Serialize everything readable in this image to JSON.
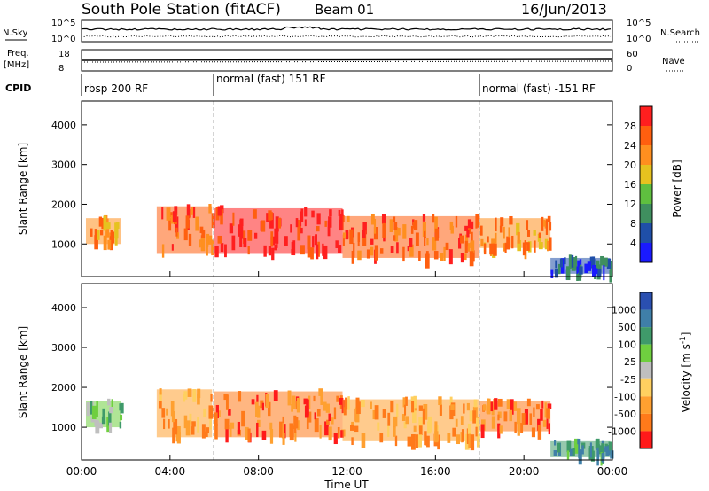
{
  "header": {
    "station": "South Pole Station (fitACF)",
    "beam": "Beam 01",
    "date": "16/Jun/2013"
  },
  "top_panels": {
    "nsky_label": "N.Sky",
    "nsearch_label": "N.Search",
    "nsky_ticks": [
      "10^5",
      "10^0"
    ],
    "nsearch_ticks": [
      "10^5",
      "10^0"
    ],
    "freq_label_1": "Freq.",
    "freq_label_2": "[MHz]",
    "freq_ticks": [
      "18",
      "8"
    ],
    "nave_label": "Nave",
    "nave_ticks": [
      "60",
      "0"
    ],
    "cpid_label": "CPID",
    "cpid_segments": [
      {
        "label": "rbsp 200 RF",
        "start_hour": 0
      },
      {
        "label": "normal (fast) 151 RF",
        "start_hour": 6
      },
      {
        "label": "normal (fast) -151 RF",
        "start_hour": 18
      }
    ]
  },
  "colors": {
    "power": [
      "#1a1aff",
      "#1f4fa8",
      "#3f8f5f",
      "#5fbf3f",
      "#e6c21f",
      "#ff8f1f",
      "#ff5f0f",
      "#ff1f1f"
    ],
    "velocity": [
      "#2a4fb0",
      "#3f7fa8",
      "#3f9a6a",
      "#6fcf3f",
      "#bfbfbf",
      "#ffd060",
      "#ffa030",
      "#ff7a1a",
      "#ff1a1a"
    ]
  },
  "chart_data": [
    {
      "type": "heatmap",
      "panel": "power",
      "xlabel": "Time UT",
      "ylabel": "Slant Range [km]",
      "x_ticks": [
        "00:00",
        "04:00",
        "08:00",
        "12:00",
        "16:00",
        "20:00",
        "00:00"
      ],
      "x_range_hours": [
        0,
        24
      ],
      "y_ticks": [
        1000,
        2000,
        3000,
        4000
      ],
      "ylim": [
        180,
        4600
      ],
      "colorbar_label": "Power [dB]",
      "colorbar_ticks": [
        "4",
        "8",
        "12",
        "16",
        "20",
        "24",
        "28"
      ],
      "colorbar_range": [
        0,
        32
      ],
      "vertical_dashed_lines_hours": [
        6,
        18
      ],
      "echo_regions": [
        {
          "t0": 0.2,
          "t1": 1.8,
          "r0": 1000,
          "r1": 1650,
          "level": 5
        },
        {
          "t0": 3.4,
          "t1": 5.9,
          "r0": 750,
          "r1": 1950,
          "level": 6
        },
        {
          "t0": 6.0,
          "t1": 11.8,
          "r0": 750,
          "r1": 1900,
          "level": 7
        },
        {
          "t0": 11.8,
          "t1": 18.0,
          "r0": 650,
          "r1": 1700,
          "level": 6
        },
        {
          "t0": 18.0,
          "t1": 21.2,
          "r0": 900,
          "r1": 1650,
          "level": 5
        },
        {
          "t0": 21.2,
          "t1": 23.9,
          "r0": 250,
          "r1": 650,
          "level": 1
        }
      ]
    },
    {
      "type": "heatmap",
      "panel": "velocity",
      "xlabel": "Time UT",
      "ylabel": "Slant Range [km]",
      "x_ticks": [
        "00:00",
        "04:00",
        "08:00",
        "12:00",
        "16:00",
        "20:00",
        "00:00"
      ],
      "x_range_hours": [
        0,
        24
      ],
      "y_ticks": [
        1000,
        2000,
        3000,
        4000
      ],
      "ylim": [
        180,
        4600
      ],
      "colorbar_label": "Velocity [m s-1]",
      "colorbar_ticks": [
        "1000",
        "500",
        "100",
        "25",
        "-25",
        "-100",
        "-500",
        "-1000"
      ],
      "vertical_dashed_lines_hours": [
        6,
        18
      ],
      "echo_regions": [
        {
          "t0": 0.2,
          "t1": 1.8,
          "r0": 1000,
          "r1": 1650,
          "level": 3
        },
        {
          "t0": 3.4,
          "t1": 5.9,
          "r0": 750,
          "r1": 1950,
          "level": 6
        },
        {
          "t0": 6.0,
          "t1": 11.8,
          "r0": 750,
          "r1": 1900,
          "level": 7
        },
        {
          "t0": 11.8,
          "t1": 18.0,
          "r0": 650,
          "r1": 1700,
          "level": 6
        },
        {
          "t0": 18.0,
          "t1": 21.2,
          "r0": 900,
          "r1": 1650,
          "level": 7
        },
        {
          "t0": 21.2,
          "t1": 23.9,
          "r0": 250,
          "r1": 650,
          "level": 2
        }
      ]
    }
  ]
}
